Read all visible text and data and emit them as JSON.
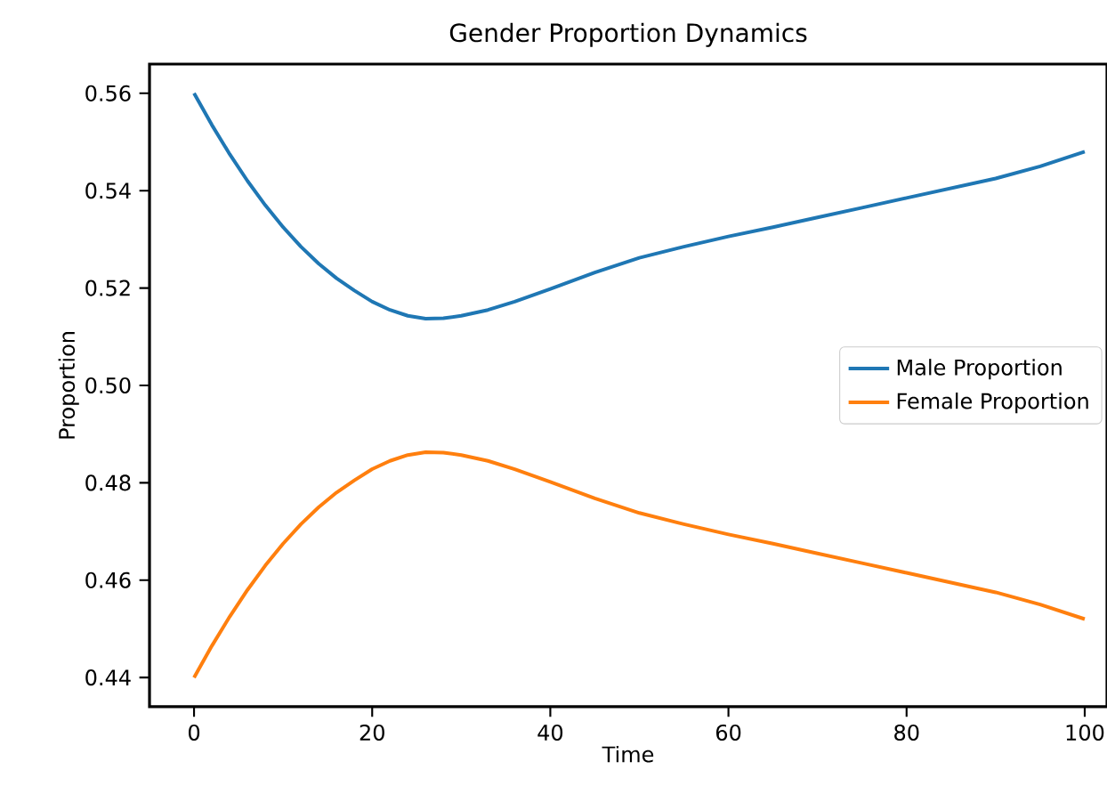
{
  "chart_data": {
    "type": "line",
    "title": "Gender Proportion Dynamics",
    "xlabel": "Time",
    "ylabel": "Proportion",
    "xlim": [
      -5,
      102.5
    ],
    "ylim": [
      0.434,
      0.566
    ],
    "xticks": [
      0,
      20,
      40,
      60,
      80,
      100
    ],
    "yticks": [
      {
        "value": 0.44,
        "label": "0.44"
      },
      {
        "value": 0.46,
        "label": "0.46"
      },
      {
        "value": 0.48,
        "label": "0.48"
      },
      {
        "value": 0.5,
        "label": "0.50"
      },
      {
        "value": 0.52,
        "label": "0.52"
      },
      {
        "value": 0.54,
        "label": "0.54"
      },
      {
        "value": 0.56,
        "label": "0.56"
      }
    ],
    "x": [
      0,
      2,
      4,
      6,
      8,
      10,
      12,
      14,
      16,
      18,
      20,
      22,
      24,
      26,
      28,
      30,
      33,
      36,
      40,
      45,
      50,
      55,
      60,
      65,
      70,
      75,
      80,
      85,
      90,
      95,
      100
    ],
    "series": [
      {
        "name": "Male Proportion",
        "color": "#1f77b4",
        "values": [
          0.56,
          0.5535,
          0.5475,
          0.542,
          0.537,
          0.5325,
          0.5285,
          0.525,
          0.522,
          0.5195,
          0.5172,
          0.5155,
          0.5143,
          0.5137,
          0.5138,
          0.5143,
          0.5155,
          0.5172,
          0.5198,
          0.5232,
          0.5262,
          0.5285,
          0.5306,
          0.5325,
          0.5345,
          0.5365,
          0.5385,
          0.5405,
          0.5425,
          0.545,
          0.548
        ]
      },
      {
        "name": "Female Proportion",
        "color": "#ff7f0e",
        "values": [
          0.44,
          0.4465,
          0.4525,
          0.458,
          0.463,
          0.4675,
          0.4715,
          0.475,
          0.478,
          0.4805,
          0.4828,
          0.4845,
          0.4857,
          0.4863,
          0.4862,
          0.4857,
          0.4845,
          0.4828,
          0.4802,
          0.4768,
          0.4738,
          0.4715,
          0.4694,
          0.4675,
          0.4655,
          0.4635,
          0.4615,
          0.4595,
          0.4575,
          0.455,
          0.452
        ]
      }
    ],
    "legend": "right",
    "grid": false,
    "marker": "none",
    "line_style": "solid"
  }
}
